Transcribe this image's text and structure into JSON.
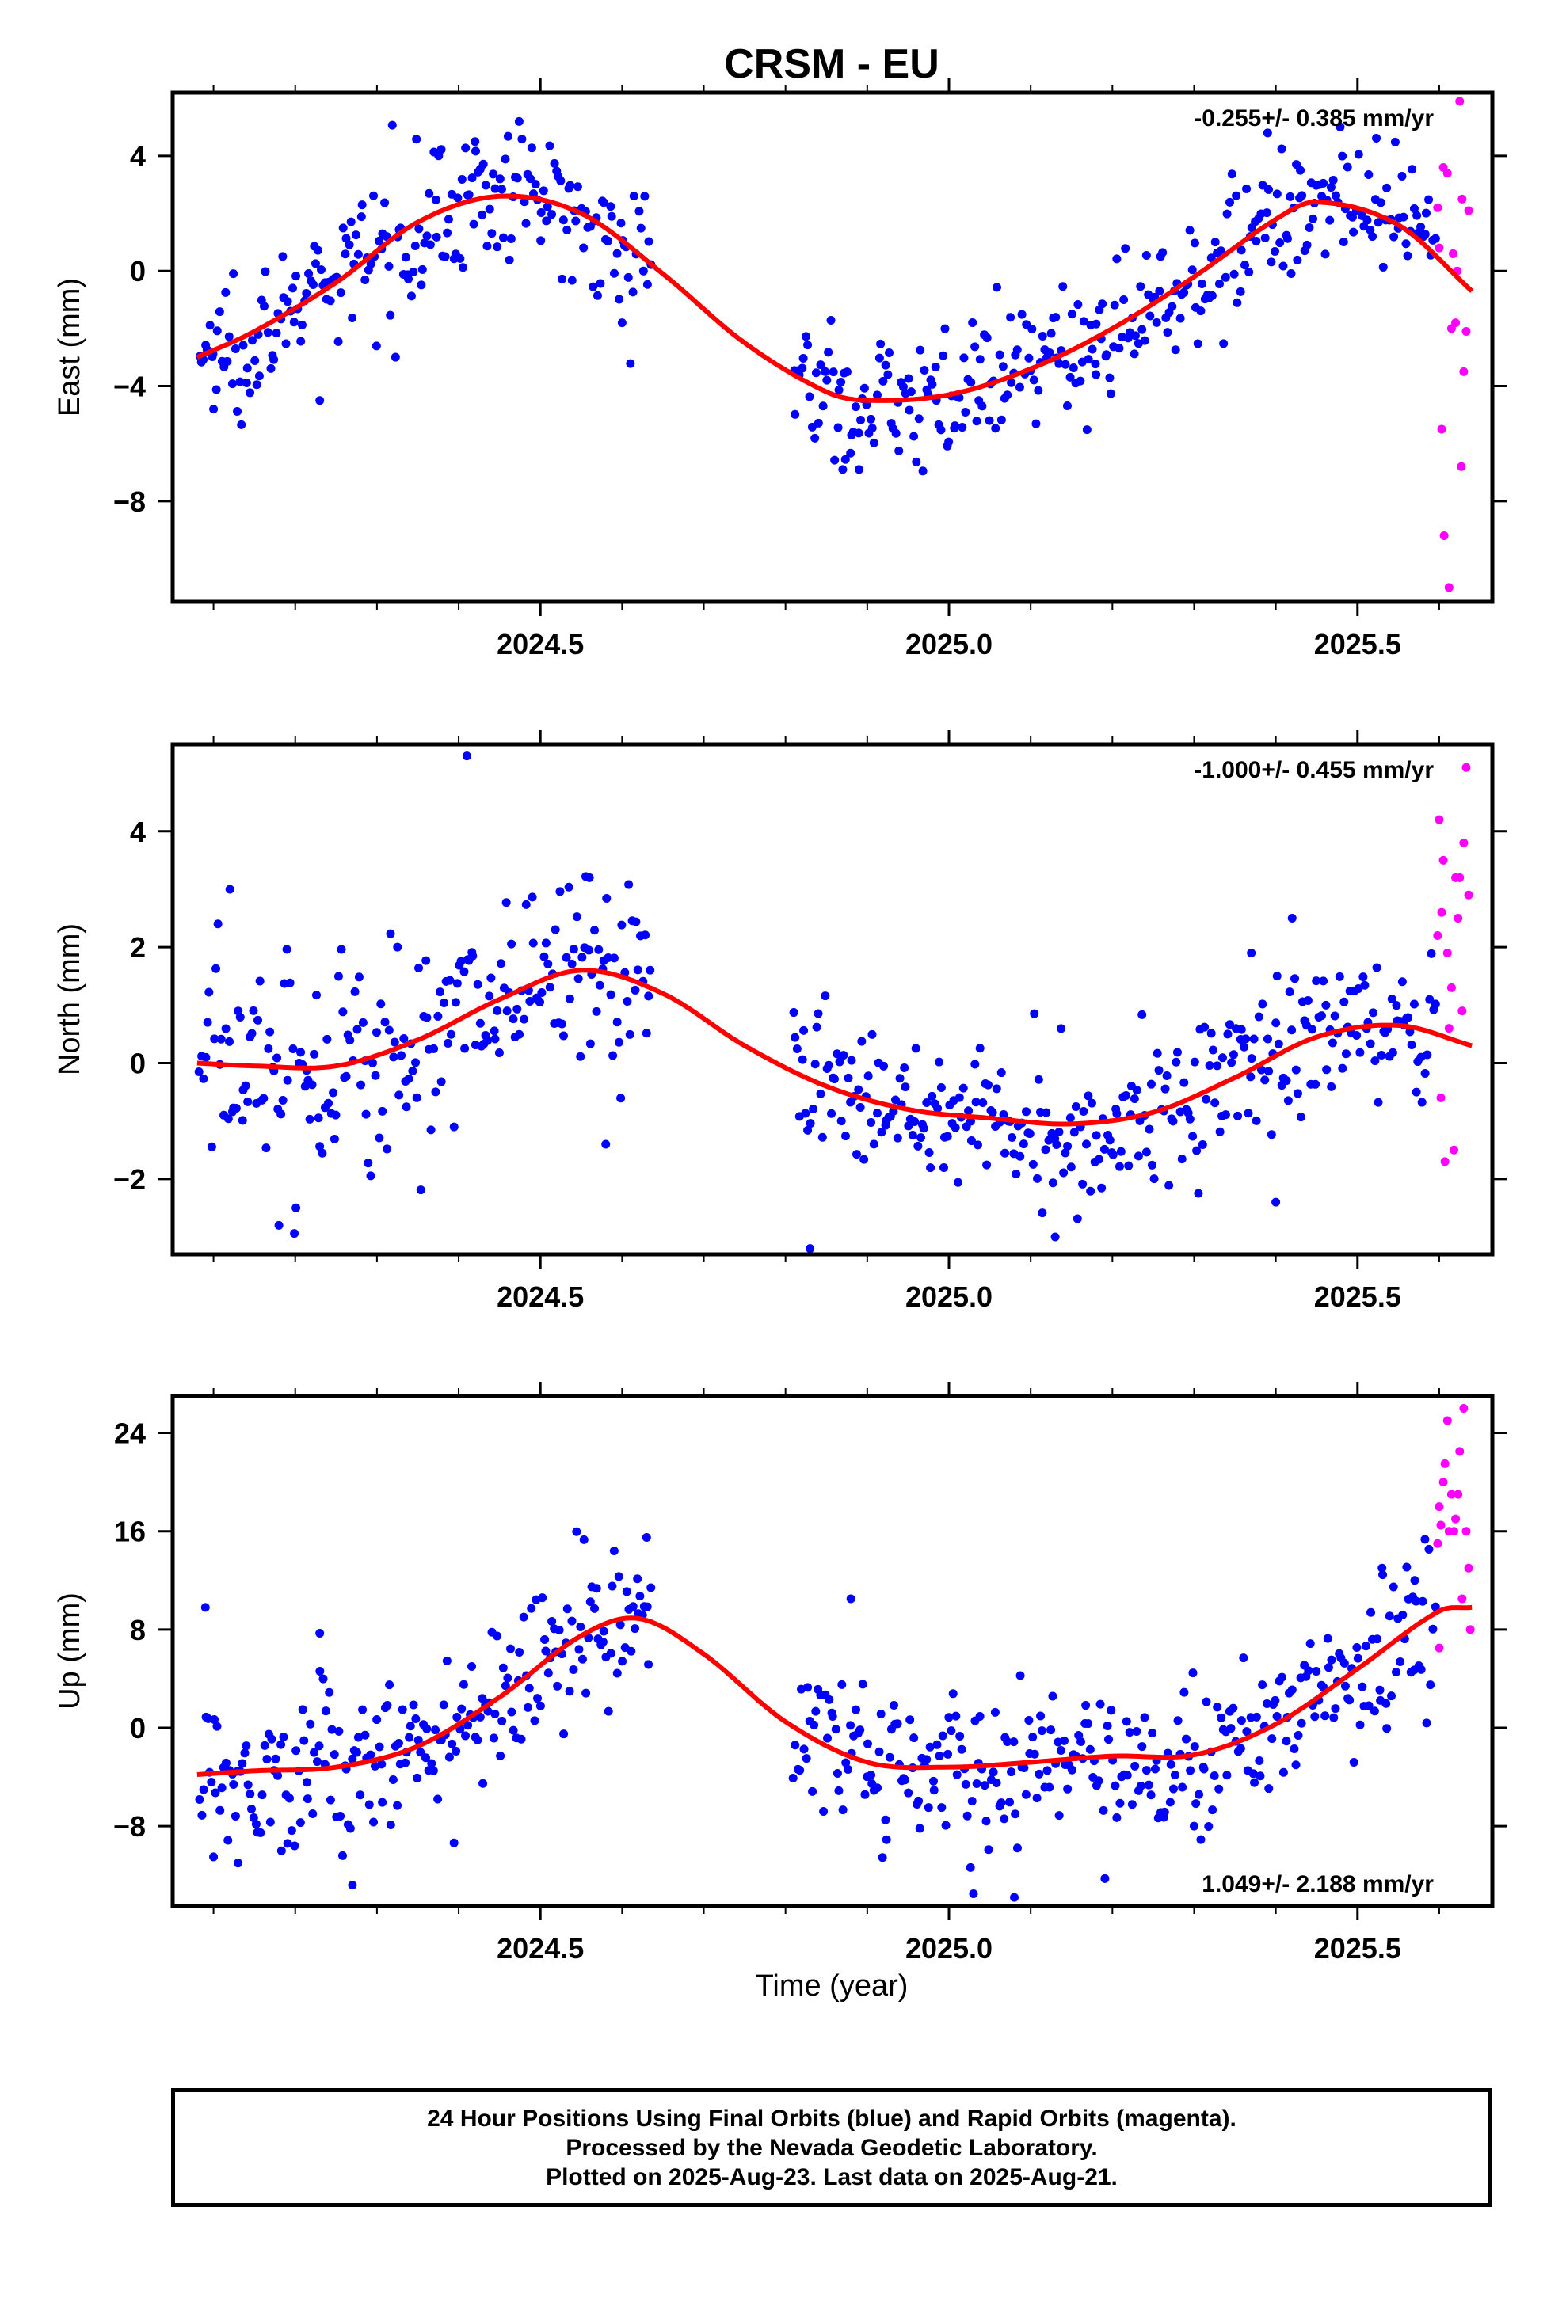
{
  "title": "CRSM - EU",
  "xlabel": "Time (year)",
  "colors": {
    "final": "#0000ff",
    "rapid": "#ff00ff",
    "fit": "#ff0000",
    "axes": "#000000"
  },
  "chart_data": [
    {
      "type": "scatter",
      "component": "East",
      "ylabel": "East (mm)",
      "rate_text": "-0.255+/- 0.385 mm/yr",
      "rate_position": "top-right",
      "xlim": [
        2024.05,
        2025.665
      ],
      "ylim": [
        -11.5,
        6.2
      ],
      "xticks": [
        2024.5,
        2025.0,
        2025.5
      ],
      "xtick_labels": [
        "2024.5",
        "2025.0",
        "2025.5"
      ],
      "yticks": [
        -8,
        -4,
        0,
        4
      ],
      "ytick_labels": [
        "−8",
        "−4",
        "0",
        "4"
      ],
      "fit_curve": {
        "name": "fit",
        "x": [
          2024.08,
          2024.15,
          2024.25,
          2024.35,
          2024.45,
          2024.55,
          2024.65,
          2024.75,
          2024.85,
          2024.9,
          2025.0,
          2025.1,
          2025.2,
          2025.3,
          2025.4,
          2025.45,
          2025.55,
          2025.64
        ],
        "y": [
          -3.0,
          -2.1,
          -0.4,
          1.7,
          2.6,
          2.0,
          -0.1,
          -2.5,
          -4.2,
          -4.5,
          -4.3,
          -3.4,
          -2.0,
          -0.2,
          1.8,
          2.4,
          1.6,
          -0.7
        ]
      },
      "final_series": {
        "name": "Final Orbits",
        "segments": [
          {
            "x0": 2024.083,
            "x1": 2024.635,
            "count": 225,
            "spread": 1.2,
            "points": [
              [
                2024.42,
                4.5
              ],
              [
                2024.23,
                -4.5
              ],
              [
                2024.1,
                -4.8
              ],
              [
                2024.6,
                -1.8
              ]
            ]
          },
          {
            "x0": 2024.81,
            "x1": 2025.595,
            "count": 310,
            "spread": 1.1,
            "points": [
              [
                2024.87,
                -6.9
              ],
              [
                2024.89,
                -6.9
              ],
              [
                2025.39,
                4.8
              ],
              [
                2025.43,
                3.5
              ],
              [
                2025.18,
                -3.6
              ]
            ]
          }
        ]
      },
      "rapid_series": {
        "name": "Rapid Orbits",
        "points": [
          [
            2025.6,
            0.8
          ],
          [
            2025.605,
            3.6
          ],
          [
            2025.61,
            3.4
          ],
          [
            2025.615,
            -2.0
          ],
          [
            2025.62,
            -1.8
          ],
          [
            2025.622,
            0.0
          ],
          [
            2025.625,
            5.9
          ],
          [
            2025.628,
            2.5
          ],
          [
            2025.63,
            -3.5
          ],
          [
            2025.633,
            -2.1
          ],
          [
            2025.636,
            2.1
          ],
          [
            2025.603,
            -5.5
          ],
          [
            2025.606,
            -9.2
          ],
          [
            2025.612,
            -11.0
          ],
          [
            2025.627,
            -6.8
          ],
          [
            2025.598,
            2.2
          ],
          [
            2025.617,
            0.6
          ]
        ]
      }
    },
    {
      "type": "scatter",
      "component": "North",
      "ylabel": "North (mm)",
      "rate_text": "-1.000+/- 0.455 mm/yr",
      "rate_position": "top-right",
      "xlim": [
        2024.05,
        2025.665
      ],
      "ylim": [
        -3.3,
        5.5
      ],
      "xticks": [
        2024.5,
        2025.0,
        2025.5
      ],
      "xtick_labels": [
        "2024.5",
        "2025.0",
        "2025.5"
      ],
      "yticks": [
        -2,
        0,
        2,
        4
      ],
      "ytick_labels": [
        "−2",
        "0",
        "2",
        "4"
      ],
      "fit_curve": {
        "name": "fit",
        "x": [
          2024.08,
          2024.15,
          2024.25,
          2024.35,
          2024.45,
          2024.55,
          2024.65,
          2024.75,
          2024.85,
          2024.95,
          2025.05,
          2025.15,
          2025.25,
          2025.35,
          2025.45,
          2025.55,
          2025.64
        ],
        "y": [
          0.0,
          -0.05,
          -0.05,
          0.4,
          1.1,
          1.6,
          1.2,
          0.3,
          -0.4,
          -0.8,
          -0.95,
          -1.05,
          -0.85,
          -0.25,
          0.45,
          0.65,
          0.3
        ]
      },
      "final_series": {
        "name": "Final Orbits",
        "segments": [
          {
            "x0": 2024.083,
            "x1": 2024.635,
            "count": 225,
            "spread": 0.95,
            "points": [
              [
                2024.41,
                5.3
              ],
              [
                2024.12,
                3.0
              ],
              [
                2024.56,
                3.2
              ],
              [
                2024.18,
                -2.8
              ],
              [
                2024.58,
                -1.4
              ]
            ]
          },
          {
            "x0": 2024.81,
            "x1": 2025.595,
            "count": 310,
            "spread": 0.7,
            "points": [
              [
                2024.83,
                -3.2
              ],
              [
                2025.13,
                -3.0
              ],
              [
                2025.42,
                2.5
              ],
              [
                2025.4,
                -2.4
              ],
              [
                2025.37,
                1.9
              ]
            ]
          }
        ]
      },
      "rapid_series": {
        "name": "Rapid Orbits",
        "points": [
          [
            2025.6,
            4.2
          ],
          [
            2025.605,
            3.5
          ],
          [
            2025.61,
            1.9
          ],
          [
            2025.615,
            1.3
          ],
          [
            2025.62,
            3.2
          ],
          [
            2025.625,
            3.2
          ],
          [
            2025.63,
            3.8
          ],
          [
            2025.633,
            5.1
          ],
          [
            2025.636,
            2.9
          ],
          [
            2025.598,
            2.2
          ],
          [
            2025.602,
            -0.6
          ],
          [
            2025.607,
            -1.7
          ],
          [
            2025.612,
            0.6
          ],
          [
            2025.618,
            -1.5
          ],
          [
            2025.623,
            2.5
          ],
          [
            2025.628,
            0.9
          ],
          [
            2025.603,
            2.6
          ]
        ]
      }
    },
    {
      "type": "scatter",
      "component": "Up",
      "ylabel": "Up (mm)",
      "rate_text": "1.049+/- 2.188 mm/yr",
      "rate_position": "bottom-right",
      "xlim": [
        2024.05,
        2025.665
      ],
      "ylim": [
        -14.5,
        27.0
      ],
      "xticks": [
        2024.5,
        2025.0,
        2025.5
      ],
      "xtick_labels": [
        "2024.5",
        "2025.0",
        "2025.5"
      ],
      "yticks": [
        -8,
        0,
        8,
        16,
        24
      ],
      "ytick_labels": [
        "−8",
        "0",
        "8",
        "16",
        "24"
      ],
      "fit_curve": {
        "name": "fit",
        "x": [
          2024.08,
          2024.15,
          2024.25,
          2024.35,
          2024.45,
          2024.55,
          2024.62,
          2024.7,
          2024.8,
          2024.9,
          2025.0,
          2025.1,
          2025.2,
          2025.3,
          2025.4,
          2025.5,
          2025.6,
          2025.64
        ],
        "y": [
          -3.8,
          -3.5,
          -3.2,
          -1.5,
          2.5,
          7.5,
          8.9,
          6.0,
          0.5,
          -2.8,
          -3.2,
          -2.8,
          -2.3,
          -2.2,
          0.3,
          4.8,
          9.5,
          9.8
        ]
      },
      "final_series": {
        "name": "Final Orbits",
        "segments": [
          {
            "x0": 2024.083,
            "x1": 2024.635,
            "count": 225,
            "spread": 3.3,
            "points": [
              [
                2024.09,
                9.8
              ],
              [
                2024.13,
                -11.0
              ],
              [
                2024.27,
                -12.8
              ],
              [
                2024.23,
                7.7
              ],
              [
                2024.63,
                15.5
              ],
              [
                2024.1,
                -10.5
              ]
            ]
          },
          {
            "x0": 2024.81,
            "x1": 2025.595,
            "count": 310,
            "spread": 3.0,
            "points": [
              [
                2024.88,
                10.5
              ],
              [
                2025.03,
                -13.5
              ],
              [
                2025.08,
                -13.8
              ],
              [
                2025.53,
                13.0
              ],
              [
                2025.57,
                12.0
              ],
              [
                2025.3,
                -8.0
              ]
            ]
          }
        ]
      },
      "rapid_series": {
        "name": "Rapid Orbits",
        "points": [
          [
            2025.6,
            18.0
          ],
          [
            2025.605,
            20.0
          ],
          [
            2025.61,
            25.0
          ],
          [
            2025.615,
            19.0
          ],
          [
            2025.62,
            17.0
          ],
          [
            2025.625,
            22.5
          ],
          [
            2025.63,
            26.0
          ],
          [
            2025.633,
            16.0
          ],
          [
            2025.636,
            13.0
          ],
          [
            2025.598,
            15.0
          ],
          [
            2025.602,
            16.5
          ],
          [
            2025.607,
            21.5
          ],
          [
            2025.612,
            16.0
          ],
          [
            2025.618,
            16.0
          ],
          [
            2025.623,
            19.0
          ],
          [
            2025.628,
            10.5
          ],
          [
            2025.6,
            6.5
          ],
          [
            2025.638,
            8.0
          ]
        ]
      }
    }
  ],
  "footer": {
    "line1": "24 Hour Positions Using Final Orbits (blue) and Rapid Orbits (magenta).",
    "line2": "Processed by the Nevada Geodetic Laboratory.",
    "line3": "Plotted on 2025-Aug-23. Last data on 2025-Aug-21."
  }
}
